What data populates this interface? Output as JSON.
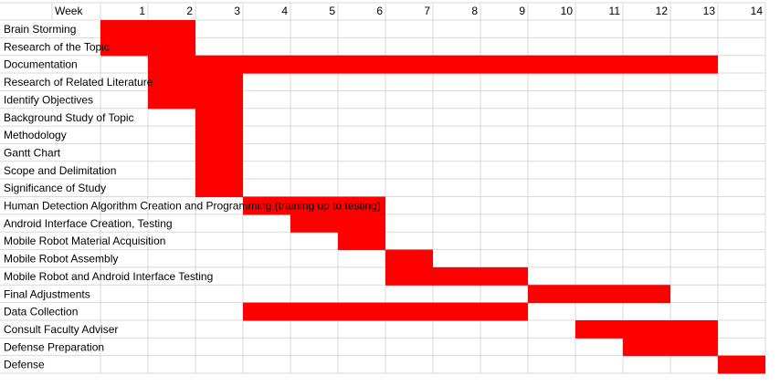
{
  "chart_data": {
    "type": "gantt",
    "corner_label": "Week",
    "weeks": [
      "1",
      "2",
      "3",
      "4",
      "5",
      "6",
      "7",
      "8",
      "9",
      "10",
      "11",
      "12",
      "13",
      "14"
    ],
    "bar_color": "#ff0000",
    "grid": true,
    "tasks": [
      {
        "name": "Brain Storming",
        "start_week": 0,
        "end_week": 2
      },
      {
        "name": "Research of the Topic",
        "start_week": 0,
        "end_week": 2
      },
      {
        "name": "Documentation",
        "start_week": 1,
        "end_week": 13
      },
      {
        "name": "Research of Related Literature",
        "start_week": 1,
        "end_week": 3
      },
      {
        "name": "Identify Objectives",
        "start_week": 1,
        "end_week": 3
      },
      {
        "name": "Background Study of Topic",
        "start_week": 2,
        "end_week": 3
      },
      {
        "name": "Methodology",
        "start_week": 2,
        "end_week": 3
      },
      {
        "name": "Gantt Chart",
        "start_week": 2,
        "end_week": 3
      },
      {
        "name": "Scope and Delimitation",
        "start_week": 2,
        "end_week": 3
      },
      {
        "name": "Significance of Study",
        "start_week": 2,
        "end_week": 3
      },
      {
        "name": "Human Detection Algorithm Creation and Programming (training up to testing)",
        "start_week": 3,
        "end_week": 6
      },
      {
        "name": "Android Interface Creation, Testing",
        "start_week": 4,
        "end_week": 6
      },
      {
        "name": "Mobile Robot Material Acquisition",
        "start_week": 5,
        "end_week": 6
      },
      {
        "name": "Mobile Robot Assembly",
        "start_week": 6,
        "end_week": 7
      },
      {
        "name": "Mobile Robot and Android Interface Testing",
        "start_week": 6,
        "end_week": 9
      },
      {
        "name": "Final Adjustments",
        "start_week": 9,
        "end_week": 12
      },
      {
        "name": "Data Collection",
        "start_week": 3,
        "end_week": 9
      },
      {
        "name": "Consult Faculty Adviser",
        "start_week": 10,
        "end_week": 13
      },
      {
        "name": "Defense Preparation",
        "start_week": 11,
        "end_week": 13
      },
      {
        "name": "Defense",
        "start_week": 13,
        "end_week": 14
      }
    ]
  }
}
